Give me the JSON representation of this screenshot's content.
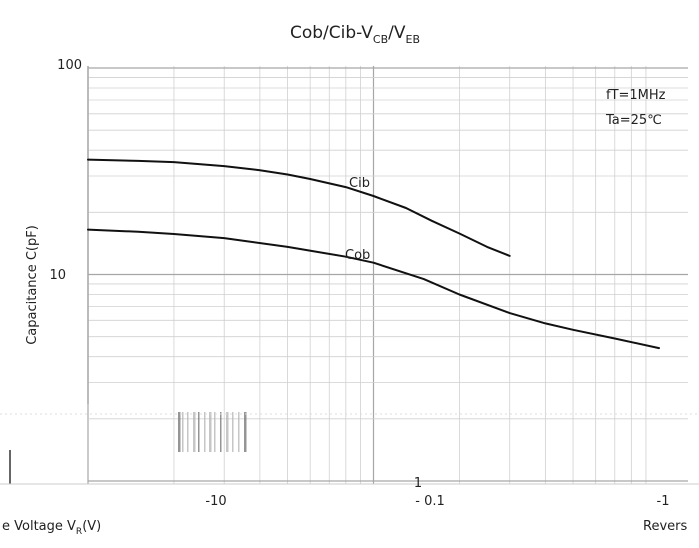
{
  "chart_data": {
    "type": "line",
    "title": "Cob/Cib-V",
    "title_sub1": "CB",
    "title_sep": "/V",
    "title_sub2": "EB",
    "ylabel": "Capacitance  C(pF)",
    "xlabel_left_main": "e Voltage  V",
    "xlabel_left_sub": "R",
    "xlabel_left_unit": "(V)",
    "xlabel_right": "Revers",
    "x_scale": "log",
    "y_scale": "log",
    "xlim": [
      0.01,
      1
    ],
    "ylim": [
      1,
      100
    ],
    "x_tick_labels": [
      "-10",
      "- 0.1",
      "-1"
    ],
    "y_tick_labels": [
      "100",
      "10",
      "1"
    ],
    "annotations": [
      "fT=1MHz",
      "Ta=25℃"
    ],
    "grid": true,
    "series": [
      {
        "name": "Cib",
        "x": [
          0.01,
          0.015,
          0.02,
          0.03,
          0.04,
          0.05,
          0.06,
          0.08,
          0.1,
          0.13,
          0.16,
          0.2,
          0.25,
          0.3
        ],
        "y": [
          36,
          35.5,
          35,
          33.5,
          32,
          30.5,
          29,
          26.5,
          24,
          21,
          18.2,
          15.8,
          13.6,
          12.3
        ]
      },
      {
        "name": "Cob",
        "x": [
          0.01,
          0.015,
          0.02,
          0.03,
          0.05,
          0.08,
          0.1,
          0.15,
          0.2,
          0.3,
          0.4,
          0.5,
          0.7,
          1.0
        ],
        "y": [
          16.5,
          16.1,
          15.7,
          15.0,
          13.6,
          12.2,
          11.4,
          9.5,
          8.0,
          6.5,
          5.8,
          5.4,
          4.9,
          4.4
        ]
      }
    ],
    "colors": {
      "line": "#111111",
      "grid_major": "#a6a6a6",
      "grid_minor": "#d0d0d0",
      "frame": "#000000"
    }
  }
}
